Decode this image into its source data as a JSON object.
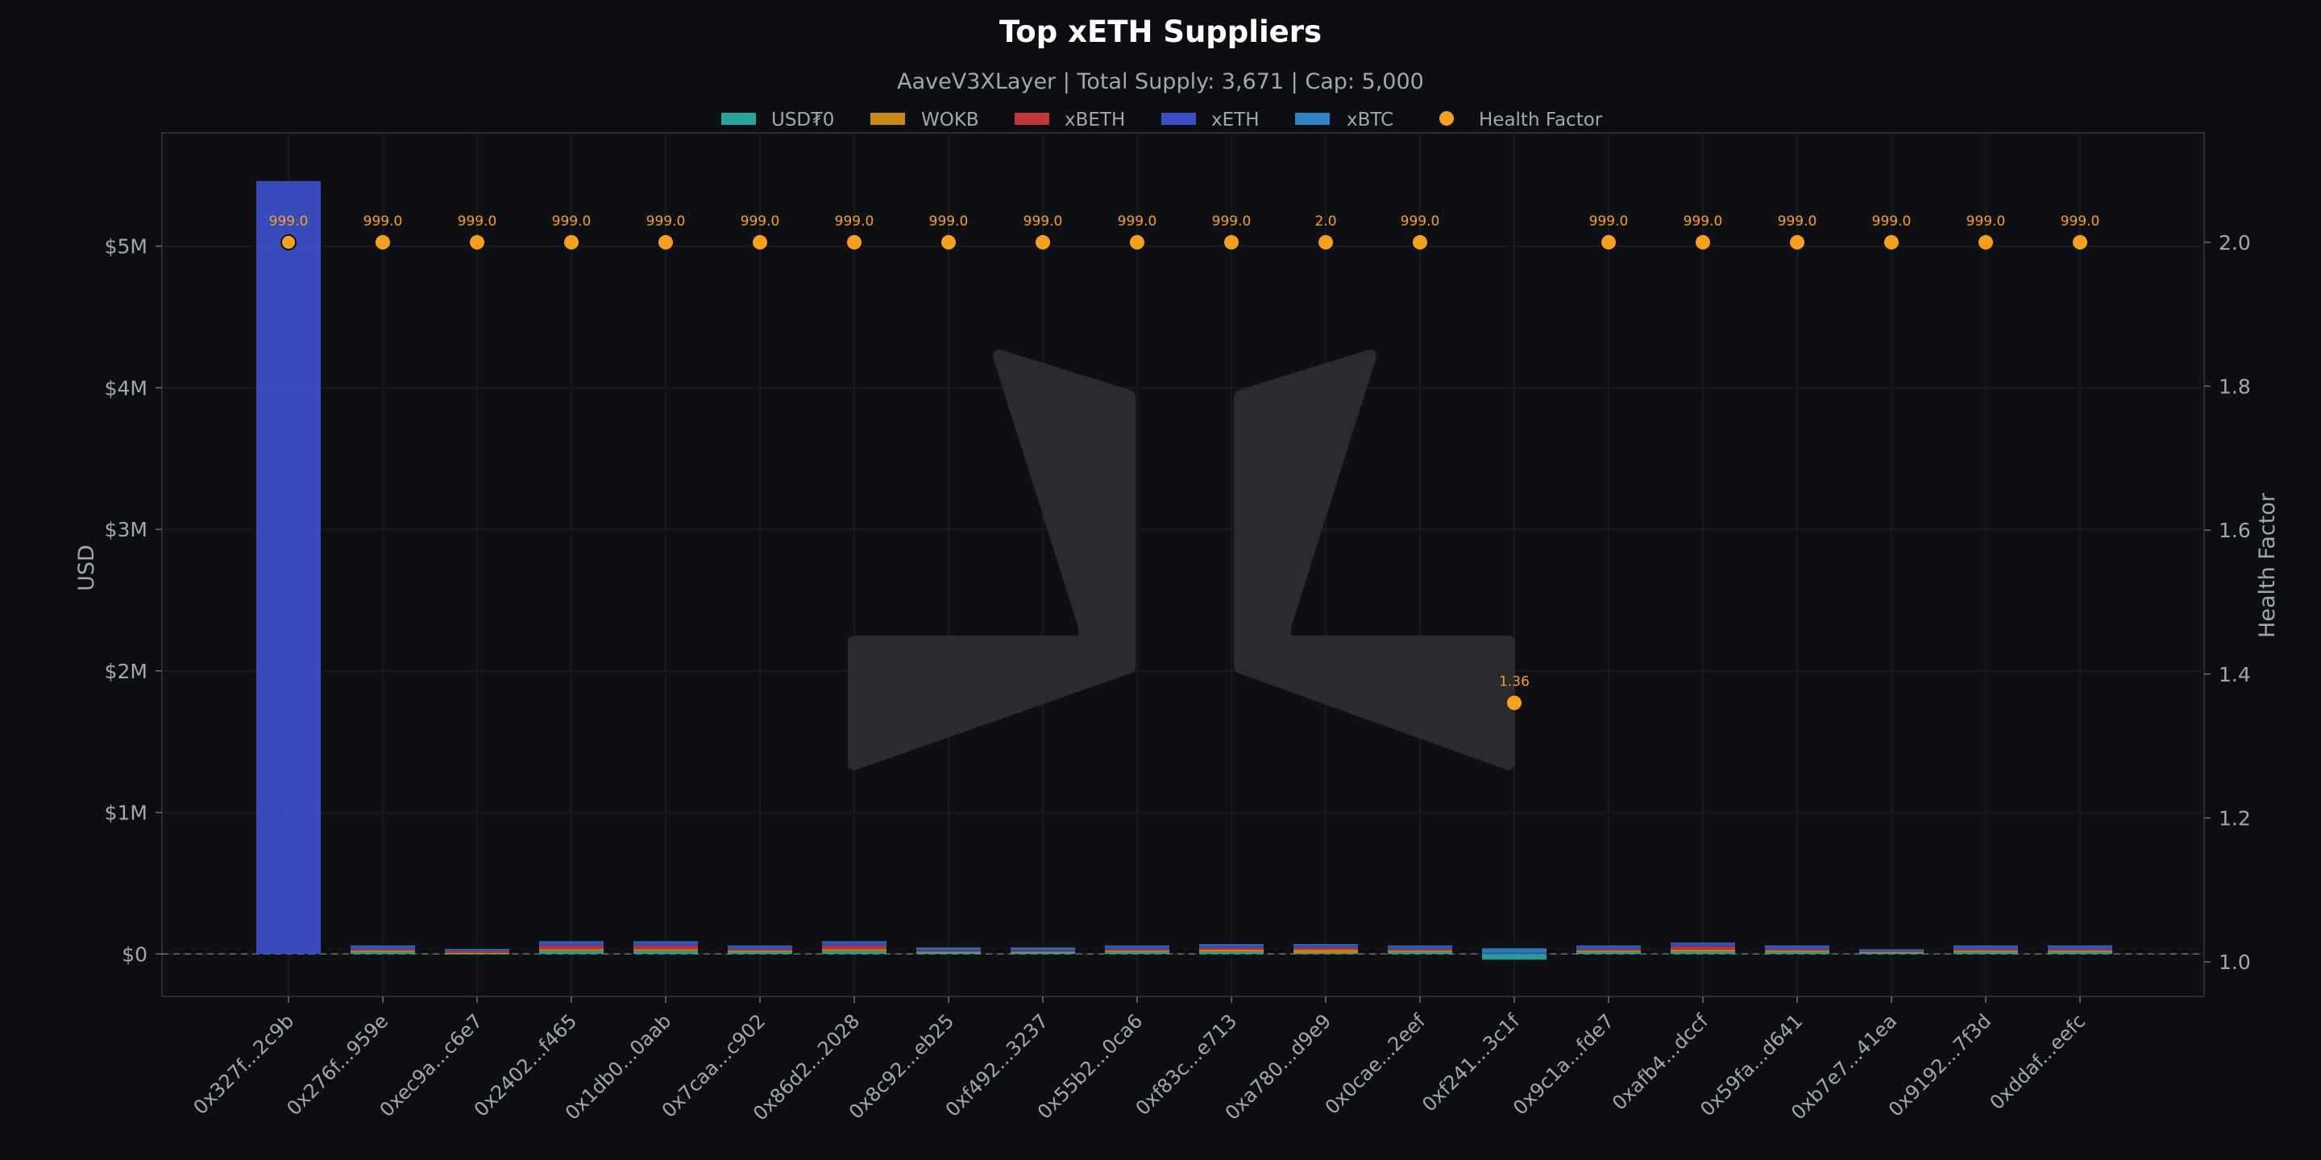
{
  "chart_data": {
    "type": "bar",
    "stacked": true,
    "title": "Top xETH Suppliers",
    "subtitle": "AaveV3XLayer | Total Supply: 3,671 | Cap: 5,000",
    "ylabel": "USD",
    "y2label": "Health Factor",
    "ylim": [
      -300000,
      5800000
    ],
    "y2lim": [
      0.952,
      2.152
    ],
    "y_ticks": [
      0,
      1000000,
      2000000,
      3000000,
      4000000,
      5000000
    ],
    "y_tick_labels": [
      "$0",
      "$1M",
      "$2M",
      "$3M",
      "$4M",
      "$5M"
    ],
    "y2_ticks": [
      1.0,
      1.2,
      1.4,
      1.6,
      1.8,
      2.0
    ],
    "y2_tick_labels": [
      "1.0",
      "1.2",
      "1.4",
      "1.6",
      "1.8",
      "2.0"
    ],
    "grid": true,
    "legend_position": "top-center",
    "categories": [
      "0x327f...2c9b",
      "0x276f...959e",
      "0xec9a...c6e7",
      "0x2402...f465",
      "0x1db0...0aab",
      "0x7caa...c902",
      "0x86d2...2028",
      "0x8c92...eb25",
      "0xf492...3237",
      "0x55b2...0ca6",
      "0xf83c...e713",
      "0xa780...d9e9",
      "0x0cae...2eef",
      "0xf241...3c1f",
      "0x9c1a...fde7",
      "0xafb4...dccf",
      "0x59fa...d641",
      "0xb7e7...41ea",
      "0x9192...7f3d",
      "0xddaf...eefc"
    ],
    "series": [
      {
        "name": "USD₮0",
        "color": "#26a69a",
        "values": [
          0,
          15000,
          3000,
          20000,
          20000,
          15000,
          20000,
          10000,
          10000,
          15000,
          15000,
          5000,
          15000,
          -40000,
          15000,
          15000,
          15000,
          8000,
          15000,
          15000
        ]
      },
      {
        "name": "WOKB",
        "color": "#c98a1b",
        "values": [
          0,
          10000,
          5000,
          15000,
          15000,
          10000,
          15000,
          5000,
          5000,
          10000,
          15000,
          25000,
          10000,
          0,
          10000,
          15000,
          10000,
          5000,
          10000,
          10000
        ]
      },
      {
        "name": "xBETH",
        "color": "#c0373d",
        "values": [
          0,
          10000,
          15000,
          25000,
          25000,
          10000,
          25000,
          5000,
          5000,
          10000,
          15000,
          15000,
          10000,
          0,
          10000,
          25000,
          10000,
          5000,
          10000,
          10000
        ]
      },
      {
        "name": "xETH",
        "color": "#3b4fc4",
        "values": [
          5460000,
          20000,
          10000,
          25000,
          25000,
          20000,
          25000,
          15000,
          15000,
          20000,
          20000,
          20000,
          20000,
          10000,
          20000,
          20000,
          20000,
          10000,
          20000,
          20000
        ]
      },
      {
        "name": "xBTC",
        "color": "#2e83c0",
        "values": [
          0,
          5000,
          2000,
          5000,
          5000,
          5000,
          5000,
          10000,
          10000,
          5000,
          5000,
          5000,
          5000,
          30000,
          5000,
          5000,
          5000,
          5000,
          5000,
          5000
        ]
      }
    ],
    "health_factor": {
      "name": "Health Factor",
      "color": "#f5a11f",
      "values": [
        2.0,
        2.0,
        2.0,
        2.0,
        2.0,
        2.0,
        2.0,
        2.0,
        2.0,
        2.0,
        2.0,
        2.0,
        2.0,
        1.36,
        2.0,
        2.0,
        2.0,
        2.0,
        2.0,
        2.0
      ],
      "labels": [
        "999.0",
        "999.0",
        "999.0",
        "999.0",
        "999.0",
        "999.0",
        "999.0",
        "999.0",
        "999.0",
        "999.0",
        "999.0",
        "2.0",
        "999.0",
        "1.36",
        "999.0",
        "999.0",
        "999.0",
        "999.0",
        "999.0",
        "999.0"
      ]
    }
  },
  "colors": {
    "background": "#0d0e12",
    "plot_background": "#0f1014",
    "frame": "#2b2d33",
    "grid": "#1c1d22",
    "text": "#a3a6ad",
    "title": "#ffffff",
    "watermark": "#2a2b2f"
  }
}
